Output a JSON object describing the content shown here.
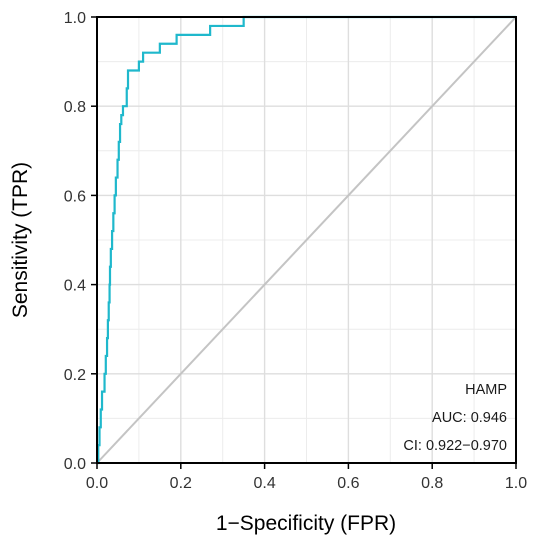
{
  "chart_data": {
    "type": "line",
    "title": "",
    "xlabel": "1−Specificity (FPR)",
    "ylabel": "Sensitivity (TPR)",
    "xlim": [
      0,
      1
    ],
    "ylim": [
      0,
      1
    ],
    "x_ticks": [
      "0.0",
      "0.2",
      "0.4",
      "0.6",
      "0.8",
      "1.0"
    ],
    "y_ticks": [
      "0.0",
      "0.2",
      "0.4",
      "0.6",
      "0.8",
      "1.0"
    ],
    "grid": true,
    "legend": "none",
    "annotations": [
      "HAMP",
      "AUC: 0.946",
      "CI: 0.922−0.970"
    ],
    "annotation_placement": "bottom-right",
    "series": [
      {
        "color": "#1fb8cc",
        "points": [
          [
            0.0,
            0.0
          ],
          [
            0.003,
            0.0
          ],
          [
            0.003,
            0.04
          ],
          [
            0.006,
            0.04
          ],
          [
            0.006,
            0.08
          ],
          [
            0.009,
            0.08
          ],
          [
            0.009,
            0.12
          ],
          [
            0.012,
            0.12
          ],
          [
            0.012,
            0.16
          ],
          [
            0.018,
            0.16
          ],
          [
            0.018,
            0.2
          ],
          [
            0.021,
            0.2
          ],
          [
            0.021,
            0.24
          ],
          [
            0.024,
            0.24
          ],
          [
            0.024,
            0.28
          ],
          [
            0.026,
            0.28
          ],
          [
            0.026,
            0.32
          ],
          [
            0.028,
            0.32
          ],
          [
            0.028,
            0.36
          ],
          [
            0.03,
            0.36
          ],
          [
            0.03,
            0.4
          ],
          [
            0.031,
            0.4
          ],
          [
            0.031,
            0.44
          ],
          [
            0.033,
            0.44
          ],
          [
            0.033,
            0.48
          ],
          [
            0.036,
            0.48
          ],
          [
            0.036,
            0.52
          ],
          [
            0.039,
            0.52
          ],
          [
            0.039,
            0.56
          ],
          [
            0.042,
            0.56
          ],
          [
            0.042,
            0.6
          ],
          [
            0.045,
            0.6
          ],
          [
            0.045,
            0.64
          ],
          [
            0.049,
            0.64
          ],
          [
            0.049,
            0.68
          ],
          [
            0.052,
            0.68
          ],
          [
            0.052,
            0.72
          ],
          [
            0.055,
            0.72
          ],
          [
            0.055,
            0.76
          ],
          [
            0.058,
            0.76
          ],
          [
            0.058,
            0.78
          ],
          [
            0.062,
            0.78
          ],
          [
            0.062,
            0.8
          ],
          [
            0.071,
            0.8
          ],
          [
            0.071,
            0.84
          ],
          [
            0.074,
            0.84
          ],
          [
            0.074,
            0.88
          ],
          [
            0.1,
            0.88
          ],
          [
            0.1,
            0.9
          ],
          [
            0.11,
            0.9
          ],
          [
            0.11,
            0.92
          ],
          [
            0.15,
            0.92
          ],
          [
            0.15,
            0.94
          ],
          [
            0.19,
            0.94
          ],
          [
            0.19,
            0.96
          ],
          [
            0.27,
            0.96
          ],
          [
            0.27,
            0.98
          ],
          [
            0.35,
            0.98
          ],
          [
            0.35,
            1.0
          ],
          [
            1.0,
            1.0
          ]
        ]
      }
    ],
    "reference_line": {
      "from": [
        0,
        0
      ],
      "to": [
        1,
        1
      ],
      "color": "#c4c4c4"
    }
  }
}
